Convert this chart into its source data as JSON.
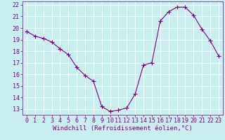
{
  "x": [
    0,
    1,
    2,
    3,
    4,
    5,
    6,
    7,
    8,
    9,
    10,
    11,
    12,
    13,
    14,
    15,
    16,
    17,
    18,
    19,
    20,
    21,
    22,
    23
  ],
  "y": [
    19.7,
    19.3,
    19.1,
    18.8,
    18.2,
    17.7,
    16.6,
    15.9,
    15.4,
    13.2,
    12.8,
    12.9,
    13.1,
    14.3,
    16.8,
    17.0,
    20.6,
    21.4,
    21.8,
    21.8,
    21.1,
    19.9,
    18.9,
    17.6
  ],
  "line_color": "#800080",
  "marker": "+",
  "marker_size": 4,
  "bg_color": "#c8eeee",
  "grid_color": "#b0dede",
  "xlabel": "Windchill (Refroidissement éolien,°C)",
  "ylim_min": 12.5,
  "ylim_max": 22.3,
  "xlim_min": -0.5,
  "xlim_max": 23.5,
  "yticks": [
    13,
    14,
    15,
    16,
    17,
    18,
    19,
    20,
    21,
    22
  ],
  "xticks": [
    0,
    1,
    2,
    3,
    4,
    5,
    6,
    7,
    8,
    9,
    10,
    11,
    12,
    13,
    14,
    15,
    16,
    17,
    18,
    19,
    20,
    21,
    22,
    23
  ],
  "tick_label_color": "#800080",
  "label_color": "#800080",
  "label_fontsize": 6.5,
  "tick_fontsize": 6.0,
  "line_width": 0.8,
  "spine_color": "#800080"
}
